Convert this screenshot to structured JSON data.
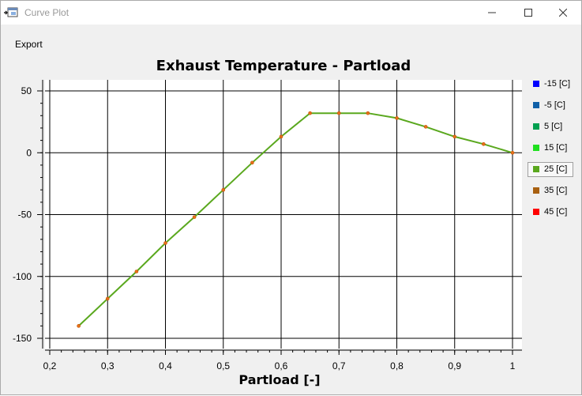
{
  "window": {
    "title": "Curve Plot",
    "controls": [
      "minimize",
      "maximize",
      "close"
    ]
  },
  "menu": {
    "items": [
      {
        "label": "Export"
      }
    ]
  },
  "legend": {
    "active_index": 4,
    "items": [
      {
        "label": "-15 [C]",
        "color": "#0000ff"
      },
      {
        "label": "-5 [C]",
        "color": "#1060a8"
      },
      {
        "label": "5 [C]",
        "color": "#00a050"
      },
      {
        "label": "15 [C]",
        "color": "#20e020"
      },
      {
        "label": "25 [C]",
        "color": "#5aa81e"
      },
      {
        "label": "35 [C]",
        "color": "#a86010"
      },
      {
        "label": "45 [C]",
        "color": "#ff0000"
      }
    ]
  },
  "chart_data": {
    "type": "line",
    "title": "Exhaust Temperature - Partload",
    "xlabel": "Partload [-]",
    "ylabel": "",
    "xlim": [
      0.2,
      1.0
    ],
    "ylim": [
      -150,
      50
    ],
    "x_ticks": [
      0.2,
      0.3,
      0.4,
      0.5,
      0.6,
      0.7,
      0.8,
      0.9,
      1.0
    ],
    "x_tick_labels": [
      "0,2",
      "0,3",
      "0,4",
      "0,5",
      "0,6",
      "0,7",
      "0,8",
      "0,9",
      "1"
    ],
    "y_ticks": [
      50,
      0,
      -50,
      -100,
      -150
    ],
    "y_tick_labels": [
      "50",
      "0",
      "-50",
      "-100",
      "-150"
    ],
    "grid": true,
    "legend_position": "right",
    "series": [
      {
        "name": "25 [C]",
        "color": "#5aa81e",
        "marker_color": "#e8701a",
        "x": [
          0.25,
          0.3,
          0.35,
          0.4,
          0.45,
          0.5,
          0.55,
          0.6,
          0.65,
          0.7,
          0.75,
          0.8,
          0.85,
          0.9,
          0.95,
          1.0
        ],
        "y": [
          -140,
          -118,
          -96,
          -73,
          -52,
          -30,
          -8,
          13,
          32,
          32,
          32,
          28,
          21,
          13,
          7,
          0
        ]
      }
    ]
  }
}
